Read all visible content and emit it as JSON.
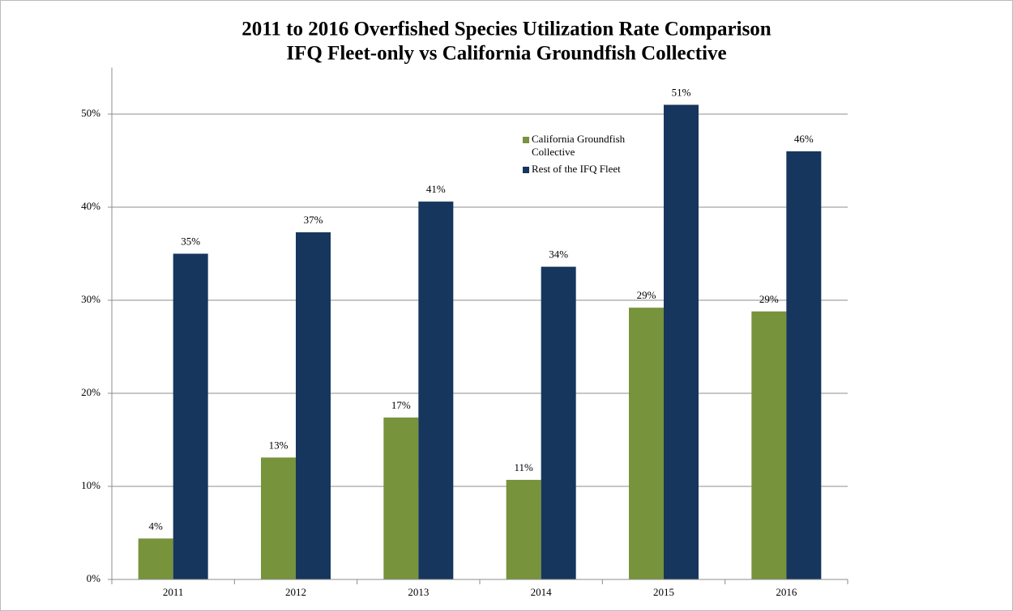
{
  "chart_data": {
    "type": "bar",
    "title": "2011 to 2016 Overfished Species Utilization Rate Comparison",
    "subtitle": "IFQ Fleet-only vs California Groundfish Collective",
    "categories": [
      "2011",
      "2012",
      "2013",
      "2014",
      "2015",
      "2016"
    ],
    "series": [
      {
        "name": "California Groundfish Collective",
        "color": "#77933c",
        "values": [
          4.4,
          13.1,
          17.4,
          10.7,
          29.2,
          28.8
        ],
        "value_labels": [
          "4%",
          "13%",
          "17%",
          "11%",
          "29%",
          "29%"
        ]
      },
      {
        "name": "Rest of the IFQ Fleet",
        "color": "#17365d",
        "values": [
          35.0,
          37.3,
          40.6,
          33.6,
          51.0,
          46.0
        ],
        "value_labels": [
          "35%",
          "37%",
          "41%",
          "34%",
          "51%",
          "46%"
        ]
      }
    ],
    "ylim": [
      0,
      55
    ],
    "yticks": [
      {
        "value": 0,
        "label": "0%"
      },
      {
        "value": 10,
        "label": "10%"
      },
      {
        "value": 20,
        "label": "20%"
      },
      {
        "value": 30,
        "label": "30%"
      },
      {
        "value": 40,
        "label": "40%"
      },
      {
        "value": 50,
        "label": "50%"
      }
    ],
    "grid": true,
    "legend": "top-right"
  }
}
